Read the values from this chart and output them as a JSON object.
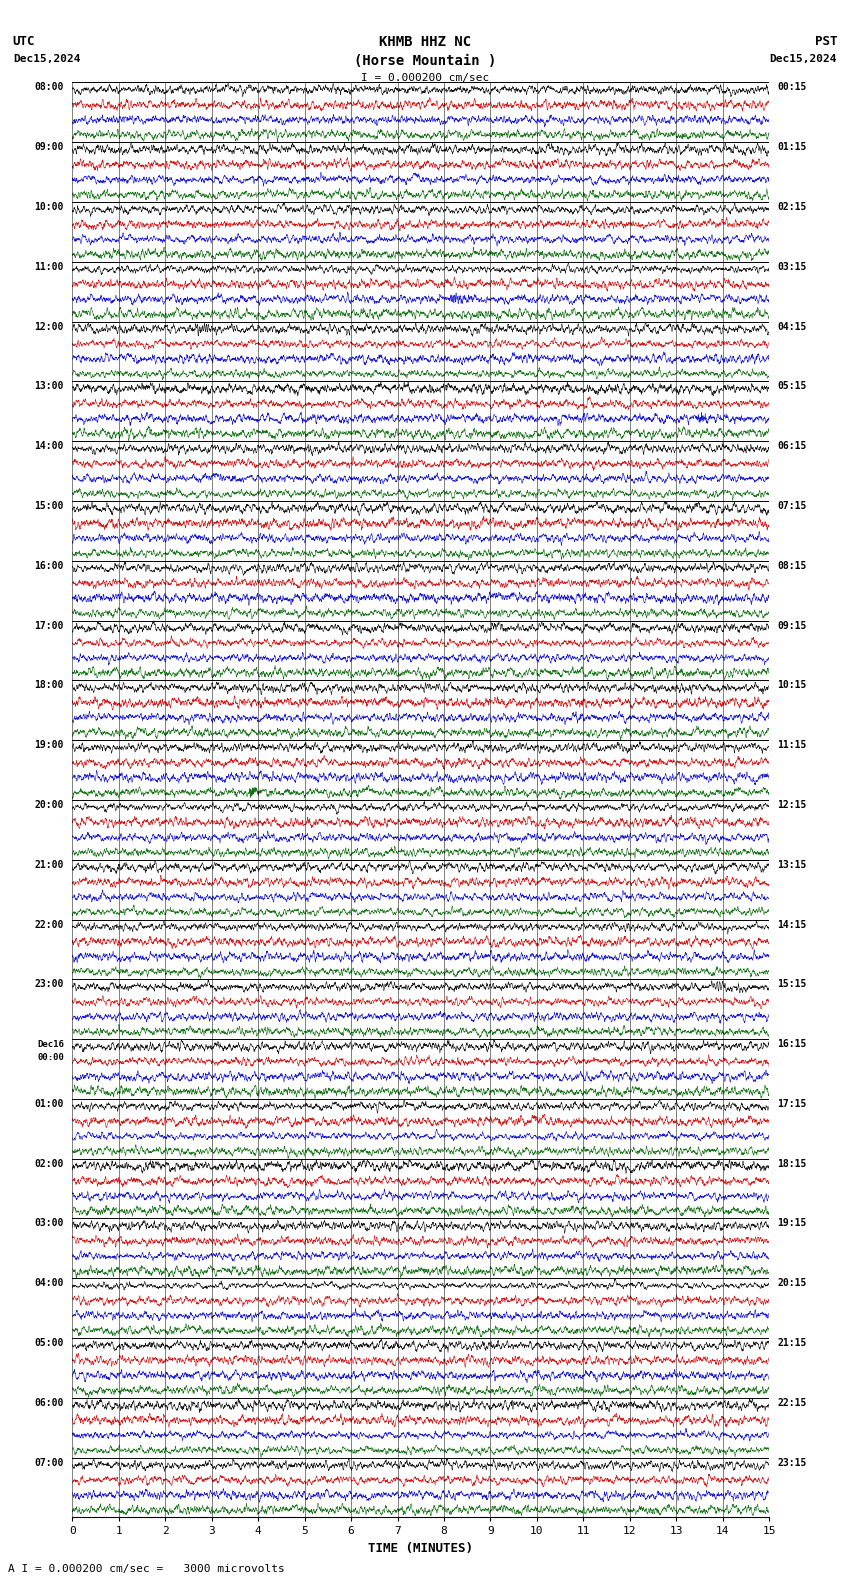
{
  "title_line1": "KHMB HHZ NC",
  "title_line2": "(Horse Mountain )",
  "scale_label": "I = 0.000200 cm/sec",
  "utc_label": "UTC",
  "pst_label": "PST",
  "date_left": "Dec15,2024",
  "date_right": "Dec15,2024",
  "xlabel": "TIME (MINUTES)",
  "footer": "A I = 0.000200 cm/sec =   3000 microvolts",
  "left_times_utc": [
    "08:00",
    "09:00",
    "10:00",
    "11:00",
    "12:00",
    "13:00",
    "14:00",
    "15:00",
    "16:00",
    "17:00",
    "18:00",
    "19:00",
    "20:00",
    "21:00",
    "22:00",
    "23:00",
    "Dec16\n00:00",
    "01:00",
    "02:00",
    "03:00",
    "04:00",
    "05:00",
    "06:00",
    "07:00"
  ],
  "right_times_pst": [
    "00:15",
    "01:15",
    "02:15",
    "03:15",
    "04:15",
    "05:15",
    "06:15",
    "07:15",
    "08:15",
    "09:15",
    "10:15",
    "11:15",
    "12:15",
    "13:15",
    "14:15",
    "15:15",
    "16:15",
    "17:15",
    "18:15",
    "19:15",
    "20:15",
    "21:15",
    "22:15",
    "23:15"
  ],
  "num_rows": 24,
  "minutes_per_row": 15,
  "traces_per_row": 4,
  "colors": [
    "black",
    "#cc0000",
    "#0000cc",
    "#006600"
  ],
  "bg_color": "white",
  "xlim": [
    0,
    15
  ],
  "xticks": [
    0,
    1,
    2,
    3,
    4,
    5,
    6,
    7,
    8,
    9,
    10,
    11,
    12,
    13,
    14,
    15
  ],
  "seed": 42
}
